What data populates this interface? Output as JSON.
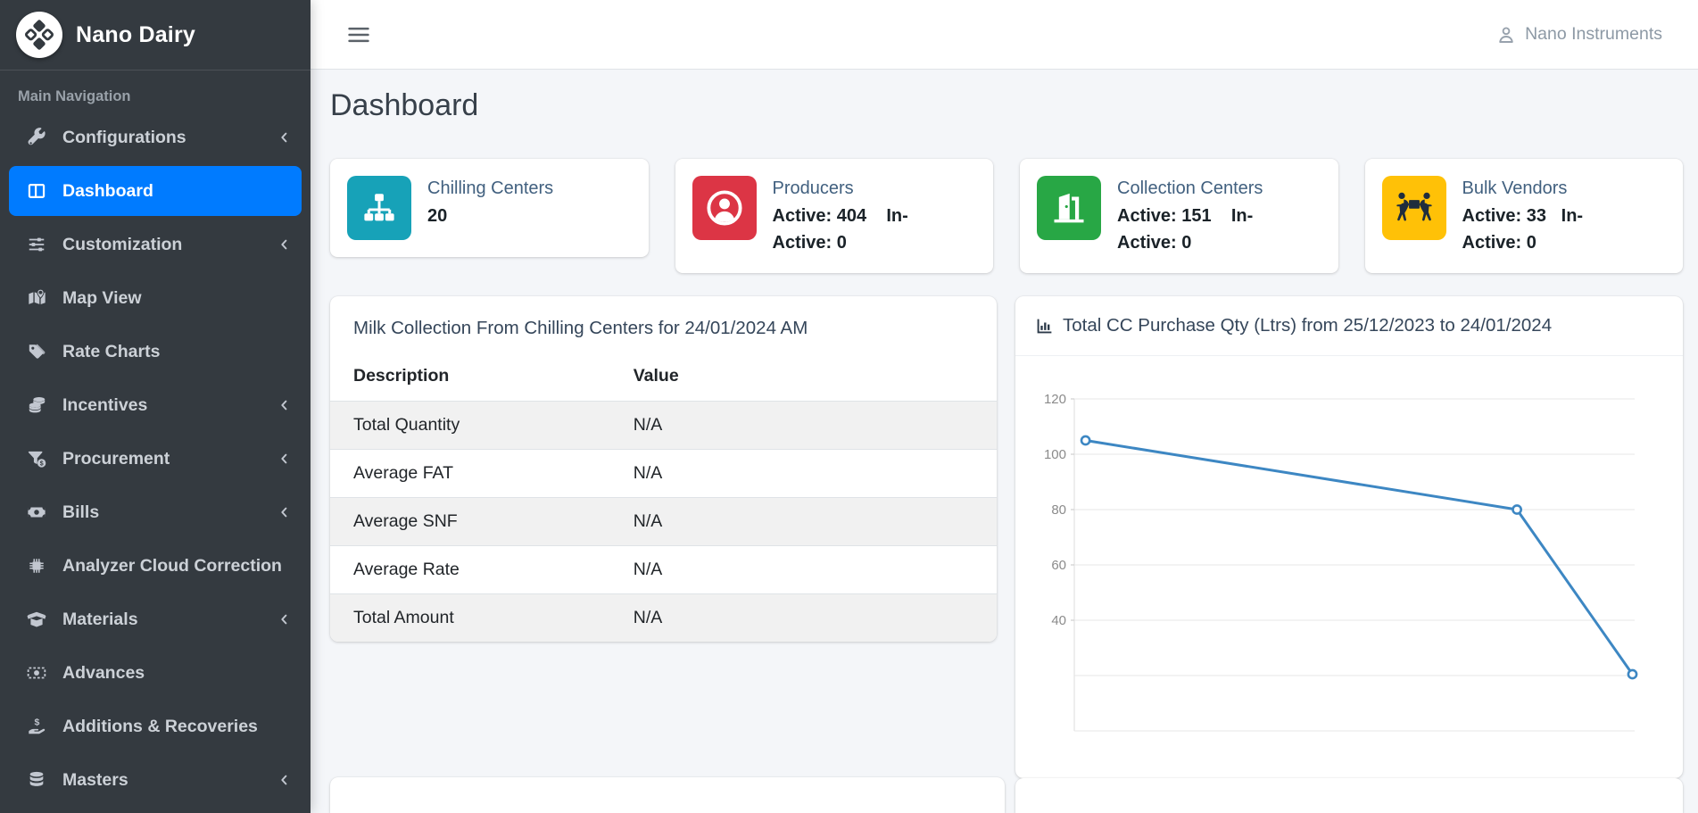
{
  "sidebar": {
    "brand": "Nano Dairy",
    "section_label": "Main Navigation",
    "items": [
      {
        "slug": "configurations",
        "label": "Configurations",
        "icon": "wrench-icon",
        "expandable": true,
        "active": false
      },
      {
        "slug": "dashboard",
        "label": "Dashboard",
        "icon": "columns-icon",
        "expandable": false,
        "active": true
      },
      {
        "slug": "customization",
        "label": "Customization",
        "icon": "sliders-icon",
        "expandable": true,
        "active": false
      },
      {
        "slug": "map-view",
        "label": "Map View",
        "icon": "map-marker-icon",
        "expandable": false,
        "active": false
      },
      {
        "slug": "rate-charts",
        "label": "Rate Charts",
        "icon": "tags-icon",
        "expandable": false,
        "active": false
      },
      {
        "slug": "incentives",
        "label": "Incentives",
        "icon": "coins-icon",
        "expandable": true,
        "active": false
      },
      {
        "slug": "procurement",
        "label": "Procurement",
        "icon": "funnel-dollar-icon",
        "expandable": true,
        "active": false
      },
      {
        "slug": "bills",
        "label": "Bills",
        "icon": "money-bill-icon",
        "expandable": true,
        "active": false
      },
      {
        "slug": "analyzer-cloud-correction",
        "label": "Analyzer Cloud Correction",
        "icon": "microchip-icon",
        "expandable": false,
        "active": false
      },
      {
        "slug": "materials",
        "label": "Materials",
        "icon": "box-open-icon",
        "expandable": true,
        "active": false
      },
      {
        "slug": "advances",
        "label": "Advances",
        "icon": "money-check-icon",
        "expandable": false,
        "active": false
      },
      {
        "slug": "additions-recoveries",
        "label": "Additions & Recoveries",
        "icon": "hand-holding-dollar-icon",
        "expandable": false,
        "active": false
      },
      {
        "slug": "masters",
        "label": "Masters",
        "icon": "database-icon",
        "expandable": true,
        "active": false
      }
    ]
  },
  "topbar": {
    "user": "Nano Instruments"
  },
  "page": {
    "title": "Dashboard"
  },
  "stat_cards": [
    {
      "title": "Chilling Centers",
      "lines": [
        "20"
      ],
      "icon": "sitemap-icon",
      "icon_bg": "#17a2b8",
      "icon_color": "#ffffff"
    },
    {
      "title": "Producers",
      "lines": [
        "Active: 404    In-",
        "Active: 0"
      ],
      "icon": "user-circle-icon",
      "icon_bg": "#dc3545",
      "icon_color": "#ffffff"
    },
    {
      "title": "Collection Centers",
      "lines": [
        "Active: 151    In-",
        "Active: 0"
      ],
      "icon": "door-open-icon",
      "icon_bg": "#28a745",
      "icon_color": "#ffffff"
    },
    {
      "title": "Bulk Vendors",
      "lines": [
        "Active: 33   In-",
        "Active: 0"
      ],
      "icon": "people-carry-icon",
      "icon_bg": "#ffc107",
      "icon_color": "#1f2d3d"
    }
  ],
  "milk_table": {
    "title": "Milk Collection From Chilling Centers for 24/01/2024 AM",
    "columns": [
      "Description",
      "Value"
    ],
    "rows": [
      [
        "Total Quantity",
        "N/A"
      ],
      [
        "Average FAT",
        "N/A"
      ],
      [
        "Average SNF",
        "N/A"
      ],
      [
        "Average Rate",
        "N/A"
      ],
      [
        "Total Amount",
        "N/A"
      ]
    ]
  },
  "chart_data": {
    "type": "line",
    "title": "Total CC Purchase Qty (Ltrs) from 25/12/2023 to 24/01/2024",
    "title_icon": "bar-chart-icon",
    "points": [
      {
        "x_pct": 2,
        "value": 105
      },
      {
        "x_pct": 79,
        "value": 80
      },
      {
        "x_pct": 99.6,
        "value": 20.5
      }
    ],
    "ylim": [
      0,
      120
    ],
    "ytick_step": 20,
    "yticks_labeled": [
      120,
      100,
      80,
      60,
      40
    ],
    "grid": true,
    "legend": "none",
    "x_axis_labels_shown": false,
    "line_color": "#3d87c3"
  }
}
